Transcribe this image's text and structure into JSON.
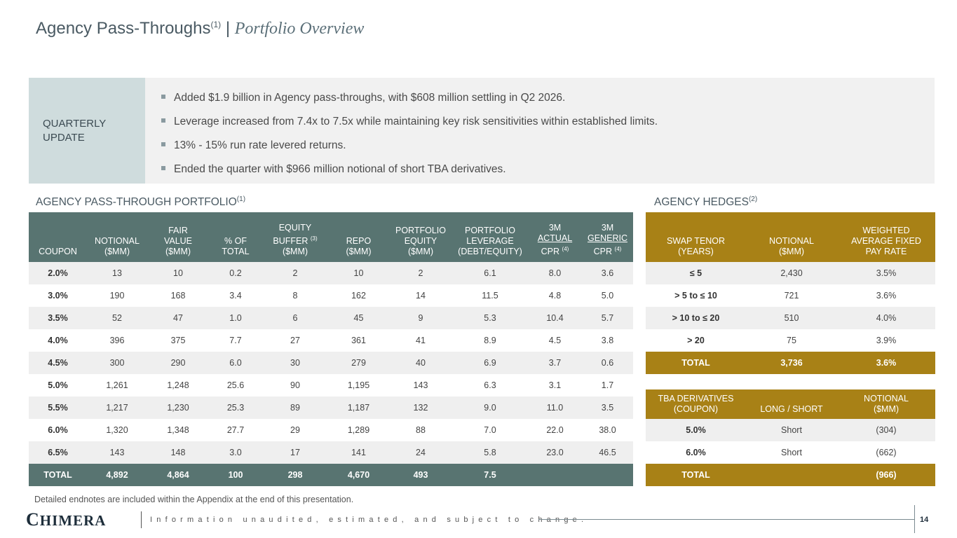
{
  "header": {
    "title_main": "Agency Pass-Throughs",
    "title_sup": "(1)",
    "title_sep": "|",
    "title_sub": "Portfolio Overview"
  },
  "quarterly_update": {
    "label": "QUARTERLY UPDATE",
    "bullets": [
      "Added $1.9 billion in Agency pass-throughs, with $608 million settling in Q2 2026.",
      "Leverage increased from 7.4x to 7.5x while maintaining key risk sensitivities within established limits.",
      "13% - 15% run rate levered returns.",
      "Ended the quarter with $966 million notional of short TBA derivatives."
    ]
  },
  "portfolio_section": {
    "title": "AGENCY PASS-THROUGH PORTFOLIO",
    "sup": "(1)"
  },
  "hedges_section": {
    "title": "AGENCY HEDGES",
    "sup": "(2)"
  },
  "portfolio_table": {
    "headers": {
      "coupon": "COUPON",
      "notional_1": "NOTIONAL",
      "notional_2": "($MM)",
      "fair_1": "FAIR",
      "fair_2": "VALUE",
      "fair_3": "($MM)",
      "pct_1": "% OF",
      "pct_2": "TOTAL",
      "eq_1": "EQUITY",
      "eq_2": "BUFFER",
      "eq_sup": "(3)",
      "eq_3": "($MM)",
      "repo_1": "REPO",
      "repo_2": "($MM)",
      "pe_1": "PORTFOLIO",
      "pe_2": "EQUITY",
      "pe_3": "($MM)",
      "pl_1": "PORTFOLIO",
      "pl_2": "LEVERAGE",
      "pl_3": "(DEBT/EQUITY)",
      "ac_1": "3M",
      "ac_2": "ACTUAL",
      "ac_3": "CPR",
      "ac_sup": "(4)",
      "gc_1": "3M",
      "gc_2": "GENERIC",
      "gc_3": "CPR",
      "gc_sup": "(4)"
    },
    "rows": [
      [
        "2.0%",
        "13",
        "10",
        "0.2",
        "2",
        "10",
        "2",
        "6.1",
        "8.0",
        "3.6"
      ],
      [
        "3.0%",
        "190",
        "168",
        "3.4",
        "8",
        "162",
        "14",
        "11.5",
        "4.8",
        "5.0"
      ],
      [
        "3.5%",
        "52",
        "47",
        "1.0",
        "6",
        "45",
        "9",
        "5.3",
        "10.4",
        "5.7"
      ],
      [
        "4.0%",
        "396",
        "375",
        "7.7",
        "27",
        "361",
        "41",
        "8.9",
        "4.5",
        "3.8"
      ],
      [
        "4.5%",
        "300",
        "290",
        "6.0",
        "30",
        "279",
        "40",
        "6.9",
        "3.7",
        "0.6"
      ],
      [
        "5.0%",
        "1,261",
        "1,248",
        "25.6",
        "90",
        "1,195",
        "143",
        "6.3",
        "3.1",
        "1.7"
      ],
      [
        "5.5%",
        "1,217",
        "1,230",
        "25.3",
        "89",
        "1,187",
        "132",
        "9.0",
        "11.0",
        "3.5"
      ],
      [
        "6.0%",
        "1,320",
        "1,348",
        "27.7",
        "29",
        "1,289",
        "88",
        "7.0",
        "22.0",
        "38.0"
      ],
      [
        "6.5%",
        "143",
        "148",
        "3.0",
        "17",
        "141",
        "24",
        "5.8",
        "23.0",
        "46.5"
      ]
    ],
    "total": [
      "TOTAL",
      "4,892",
      "4,864",
      "100",
      "298",
      "4,670",
      "493",
      "7.5",
      "",
      ""
    ]
  },
  "swap_table": {
    "headers": {
      "tenor_1": "SWAP TENOR",
      "tenor_2": "(YEARS)",
      "notional_1": "NOTIONAL",
      "notional_2": "($MM)",
      "rate_1": "WEIGHTED",
      "rate_2": "AVERAGE FIXED",
      "rate_3": "PAY RATE"
    },
    "rows": [
      [
        "≤ 5",
        "2,430",
        "3.5%"
      ],
      [
        "> 5 to ≤ 10",
        "721",
        "3.6%"
      ],
      [
        "> 10 to ≤ 20",
        "510",
        "4.0%"
      ],
      [
        "> 20",
        "75",
        "3.9%"
      ]
    ],
    "total": [
      "TOTAL",
      "3,736",
      "3.6%"
    ]
  },
  "tba_table": {
    "headers": {
      "tba_1": "TBA DERIVATIVES",
      "tba_2": "(COUPON)",
      "ls": "LONG / SHORT",
      "notional_1": "NOTIONAL",
      "notional_2": "($MM)"
    },
    "rows": [
      [
        "5.0%",
        "Short",
        "(304)"
      ],
      [
        "6.0%",
        "Short",
        "(662)"
      ]
    ],
    "total": [
      "TOTAL",
      "",
      "(966)"
    ]
  },
  "endnote": "Detailed endnotes are included within the Appendix at the end of this presentation.",
  "footer": {
    "logo_c": "C",
    "logo_rest": "HIMERA",
    "tagline": "Information unaudited, estimated, and subject to change.",
    "page": "14"
  },
  "colors": {
    "portfolio_header": "#587471",
    "hedges_header": "#a88116",
    "update_label_bg": "#cfdcdd"
  }
}
